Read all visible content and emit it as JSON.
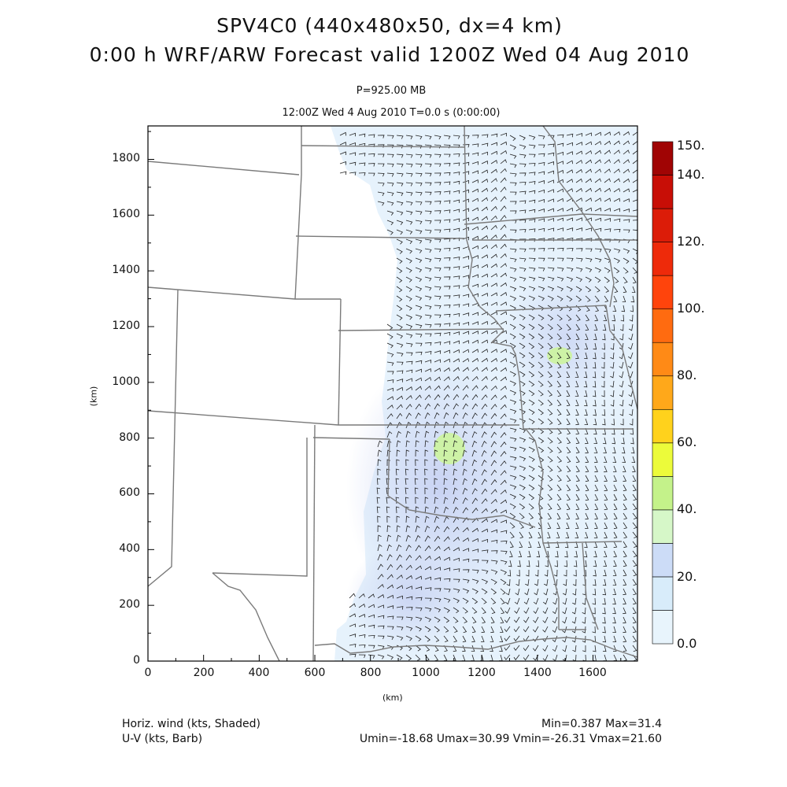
{
  "titles": {
    "line1": "SPV4C0 (440x480x50, dx=4 km)",
    "line2": "0:00 h WRF/ARW Forecast valid 1200Z Wed 04 Aug 2010"
  },
  "subtitles": {
    "pressure": "P=925.00 MB",
    "time": "12:00Z Wed  4 Aug 2010     T=0.0 s (0:00:00)"
  },
  "axes": {
    "x_unit": "(km)",
    "y_unit": "(km)",
    "x_ticks": [
      "0",
      "200",
      "400",
      "600",
      "800",
      "1000",
      "1200",
      "1400",
      "1600"
    ],
    "y_ticks": [
      "0",
      "200",
      "400",
      "600",
      "800",
      "1000",
      "1200",
      "1400",
      "1600",
      "1800"
    ],
    "xlim": [
      0,
      1760
    ],
    "ylim": [
      0,
      1920
    ]
  },
  "colorbar": {
    "labels": [
      "150.",
      "140.",
      "120.",
      "100.",
      "80.",
      "60.",
      "40.",
      "20.",
      "0.0"
    ],
    "colors": [
      "#e8f4fc",
      "#d8ecfa",
      "#ccdcf7",
      "#d6f7c8",
      "#c4f28a",
      "#ecfb3a",
      "#ffd21c",
      "#ffa81a",
      "#ff8a16",
      "#ff6b10",
      "#ff440c",
      "#ee2a0a",
      "#dc1c08",
      "#c80e06",
      "#a00404"
    ],
    "scale_max": 150
  },
  "colors": {
    "wind_low": "#e6f2fc",
    "wind_mid": "#d2e2f8",
    "wind_high": "#c6d0f2",
    "wind_peak": "#cdf2a6",
    "border": "#7a7a7a",
    "barb": "#222222"
  },
  "footer": {
    "field1": "Horiz. wind (kts, Shaded)",
    "field2": "U-V (kts, Barb)",
    "minmax": "Min=0.387 Max=31.4",
    "uv_stats": "Umin=-18.68 Umax=30.99 Vmin=-26.31 Vmax=21.60"
  }
}
